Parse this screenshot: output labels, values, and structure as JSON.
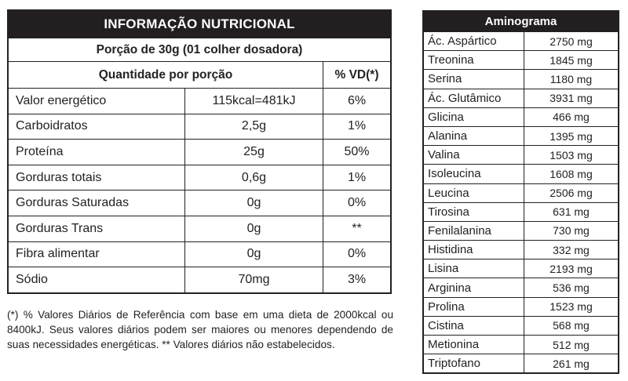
{
  "nutrition": {
    "title": "INFORMAÇÃO NUTRICIONAL",
    "portion": "Porção de 30g (01 colher dosadora)",
    "header_quantity": "Quantidade por porção",
    "header_vd": "% VD(*)",
    "rows": [
      {
        "name": "Valor energético",
        "amount": "115kcal=481kJ",
        "vd": "6%"
      },
      {
        "name": "Carboidratos",
        "amount": "2,5g",
        "vd": "1%"
      },
      {
        "name": "Proteína",
        "amount": "25g",
        "vd": "50%"
      },
      {
        "name": "Gorduras totais",
        "amount": "0,6g",
        "vd": "1%"
      },
      {
        "name": "Gorduras Saturadas",
        "amount": "0g",
        "vd": "0%"
      },
      {
        "name": "Gorduras Trans",
        "amount": "0g",
        "vd": "**"
      },
      {
        "name": "Fibra alimentar",
        "amount": "0g",
        "vd": "0%"
      },
      {
        "name": "Sódio",
        "amount": "70mg",
        "vd": "3%"
      }
    ],
    "footnote": "(*) % Valores Diários de Referência com base em uma dieta de 2000kcal ou 8400kJ. Seus valores diários podem ser maiores ou menores dependendo de suas necessidades energéticas. ** Valores diários não estabelecidos."
  },
  "aminogram": {
    "title": "Aminograma",
    "rows": [
      {
        "name": "Ác. Aspártico",
        "value": "2750 mg"
      },
      {
        "name": "Treonina",
        "value": "1845 mg"
      },
      {
        "name": "Serina",
        "value": "1180 mg"
      },
      {
        "name": "Ác. Glutâmico",
        "value": "3931 mg"
      },
      {
        "name": "Glicina",
        "value": "466 mg"
      },
      {
        "name": "Alanina",
        "value": "1395 mg"
      },
      {
        "name": "Valina",
        "value": "1503 mg"
      },
      {
        "name": "Isoleucina",
        "value": "1608 mg"
      },
      {
        "name": "Leucina",
        "value": "2506 mg"
      },
      {
        "name": "Tirosina",
        "value": "631 mg"
      },
      {
        "name": "Fenilalanina",
        "value": "730 mg"
      },
      {
        "name": "Histidina",
        "value": "332 mg"
      },
      {
        "name": "Lisina",
        "value": "2193 mg"
      },
      {
        "name": "Arginina",
        "value": "536 mg"
      },
      {
        "name": "Prolina",
        "value": "1523 mg"
      },
      {
        "name": "Cistina",
        "value": "568 mg"
      },
      {
        "name": "Metionina",
        "value": "512 mg"
      },
      {
        "name": "Triptofano",
        "value": "261 mg"
      }
    ]
  }
}
